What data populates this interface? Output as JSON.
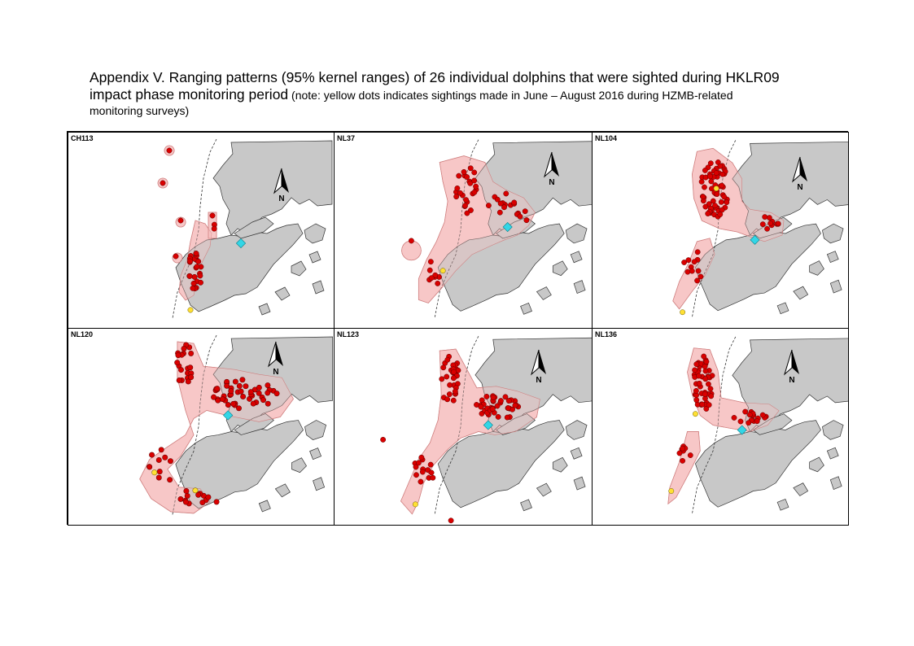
{
  "title": {
    "line1": "Appendix V.  Ranging patterns (95% kernel ranges) of 26 individual dolphins that were sighted during HKLR09",
    "line2_main": "impact phase monitoring period",
    "line2_note": " (note: yellow dots indicates sightings made in June – August 2016 during HZMB-related",
    "line3_note": "monitoring surveys)"
  },
  "panels": [
    {
      "id": "CH113",
      "label": "CH113"
    },
    {
      "id": "NL37",
      "label": "NL37"
    },
    {
      "id": "NL104",
      "label": "NL104"
    },
    {
      "id": "NL120",
      "label": "NL120"
    },
    {
      "id": "NL123",
      "label": "NL123"
    },
    {
      "id": "NL136",
      "label": "NL136"
    }
  ],
  "north_arrow_label": "N",
  "colors": {
    "land": "#c8c8c8",
    "kernel_range": "#f7c4c4",
    "kernel_outline": "#d08080",
    "sighting": "#d90000",
    "sighting_2016": "#ffe033",
    "facility": "#33d6e6"
  },
  "legend": {
    "sighting_icon": "red-dot-icon",
    "recent_sighting_icon": "yellow-dot-icon",
    "north_icon": "north-arrow-icon"
  }
}
